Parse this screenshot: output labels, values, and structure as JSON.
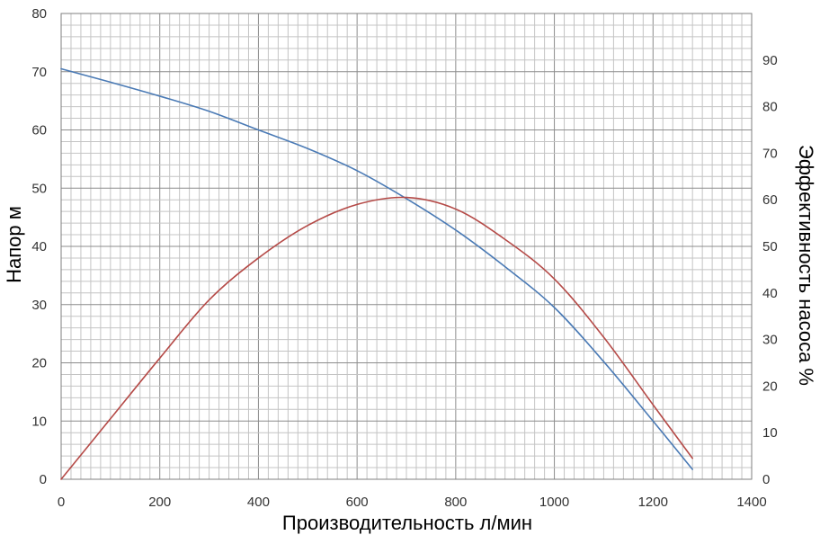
{
  "chart_data": {
    "type": "line",
    "xlabel": "Производительность л/мин",
    "ylabel_left": "Напор м",
    "ylabel_right": "Эффективность насоса %",
    "xlim": [
      0,
      1400
    ],
    "ylim_left": [
      0,
      80
    ],
    "ylim_right": [
      0,
      100
    ],
    "x_ticks": [
      "0",
      "200",
      "400",
      "600",
      "800",
      "1000",
      "1200",
      "1400"
    ],
    "y_left_ticks": [
      "0",
      "10",
      "20",
      "30",
      "40",
      "50",
      "60",
      "70",
      "80"
    ],
    "y_right_ticks": [
      "0",
      "10",
      "20",
      "30",
      "40",
      "50",
      "60",
      "70",
      "80",
      "90"
    ],
    "grid": true,
    "series": [
      {
        "axis": "left",
        "color": "#4a7ab5",
        "x": [
          0,
          100,
          200,
          300,
          400,
          500,
          600,
          700,
          800,
          900,
          1000,
          1100,
          1200,
          1280
        ],
        "values": [
          70.5,
          68.2,
          65.8,
          63.2,
          60.0,
          56.8,
          53.0,
          48.2,
          42.8,
          36.5,
          29.5,
          20.2,
          10.0,
          1.7
        ]
      },
      {
        "axis": "right",
        "color": "#b54a47",
        "x": [
          0,
          100,
          200,
          300,
          400,
          500,
          600,
          700,
          800,
          900,
          1000,
          1100,
          1200,
          1280
        ],
        "values": [
          0,
          13,
          26,
          38.5,
          47.5,
          54.5,
          59.0,
          60.5,
          58.0,
          51.5,
          43.0,
          30.5,
          16.0,
          4.5
        ]
      }
    ]
  }
}
